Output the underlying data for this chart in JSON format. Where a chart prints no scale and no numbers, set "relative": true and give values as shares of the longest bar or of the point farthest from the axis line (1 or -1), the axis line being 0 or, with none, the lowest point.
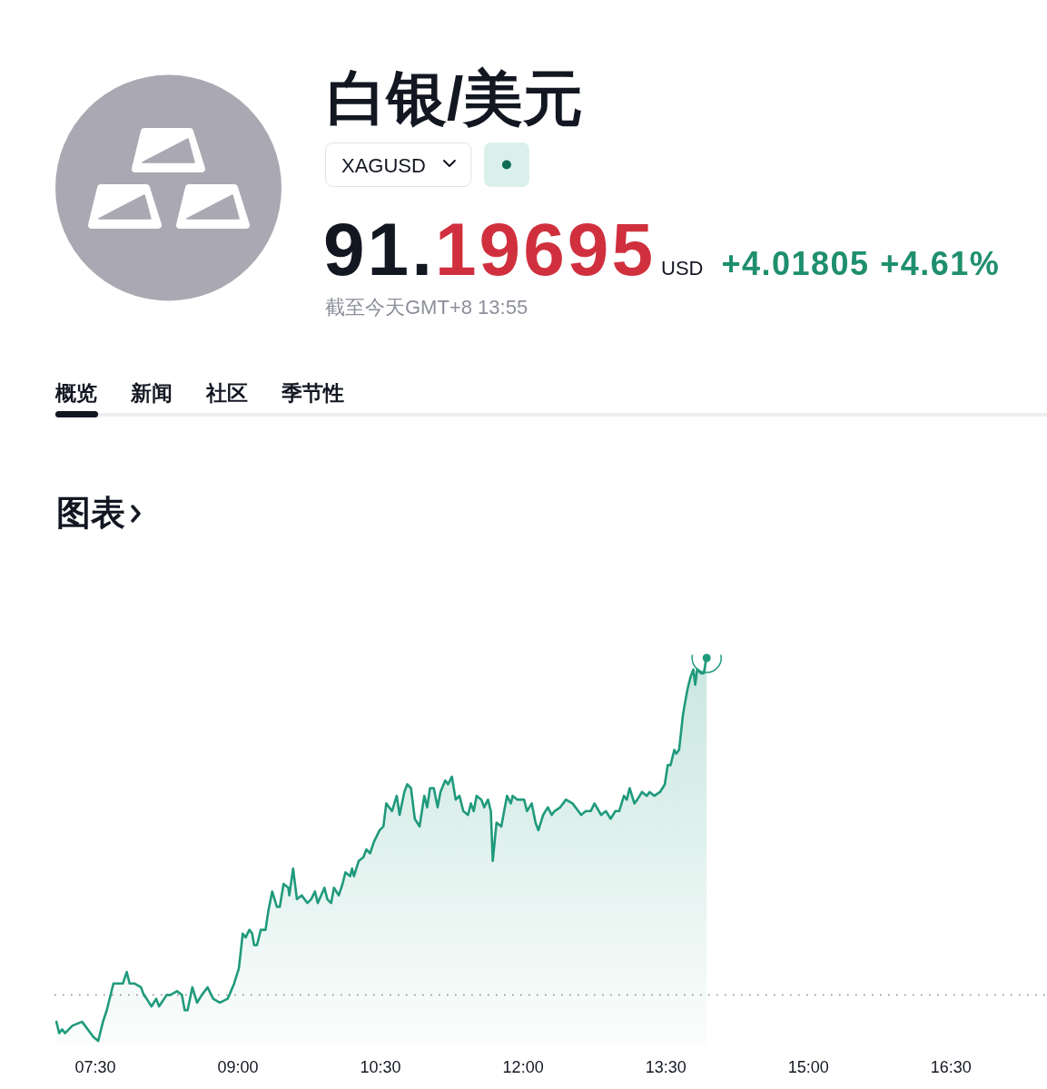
{
  "chart_data": {
    "type": "area",
    "relative": true,
    "title": "白银/美元",
    "annotations": [
      "XAGUSD",
      "91.19695",
      "USD",
      "+4.01805 +4.61%",
      "截至今天GMT+8 13:55",
      "概览",
      "新闻",
      "社区",
      "季节性",
      "图表"
    ],
    "color": "#1f9a7c",
    "xlim": [
      7.07,
      17.51
    ],
    "xticks": [
      {
        "value": 7.5,
        "label": "07:30"
      },
      {
        "value": 9,
        "label": "09:00"
      },
      {
        "value": 10.5,
        "label": "10:30"
      },
      {
        "value": 12,
        "label": "12:00"
      },
      {
        "value": 13.5,
        "label": "13:30"
      },
      {
        "value": 15,
        "label": "15:00"
      },
      {
        "value": 16.5,
        "label": "16:30"
      }
    ],
    "ref_lines": [
      {
        "axis": "y",
        "value": 0.12,
        "color": "#9598a1",
        "line_style": "dotted"
      }
    ],
    "x": [
      7.09,
      7.12,
      7.15,
      7.18,
      7.26,
      7.36,
      7.45,
      7.48,
      7.53,
      7.58,
      7.62,
      7.69,
      7.74,
      7.79,
      7.83,
      7.86,
      7.91,
      7.98,
      8.01,
      8.04,
      8.09,
      8.14,
      8.17,
      8.25,
      8.29,
      8.36,
      8.41,
      8.44,
      8.47,
      8.52,
      8.57,
      8.62,
      8.68,
      8.74,
      8.81,
      8.89,
      8.91,
      8.96,
      9.01,
      9.05,
      9.08,
      9.12,
      9.15,
      9.17,
      9.2,
      9.24,
      9.29,
      9.32,
      9.36,
      9.41,
      9.44,
      9.48,
      9.53,
      9.54,
      9.58,
      9.62,
      9.67,
      9.73,
      9.77,
      9.81,
      9.84,
      9.91,
      9.94,
      9.98,
      10.01,
      10.06,
      10.1,
      10.13,
      10.18,
      10.2,
      10.22,
      10.27,
      10.32,
      10.35,
      10.39,
      10.43,
      10.49,
      10.53,
      10.56,
      10.62,
      10.67,
      10.7,
      10.75,
      10.78,
      10.82,
      10.86,
      10.91,
      10.96,
      10.99,
      11.02,
      11.06,
      11.1,
      11.13,
      11.18,
      11.21,
      11.25,
      11.29,
      11.33,
      11.37,
      11.42,
      11.45,
      11.48,
      11.51,
      11.56,
      11.59,
      11.63,
      11.66,
      11.68,
      11.72,
      11.77,
      11.8,
      11.83,
      11.87,
      11.89,
      11.94,
      12.01,
      12.04,
      12.09,
      12.13,
      12.16,
      12.21,
      12.26,
      12.3,
      12.33,
      12.39,
      12.45,
      12.52,
      12.58,
      12.61,
      12.66,
      12.71,
      12.75,
      12.82,
      12.87,
      12.92,
      12.97,
      13.01,
      13.06,
      13.09,
      13.12,
      13.17,
      13.2,
      13.25,
      13.3,
      13.33,
      13.38,
      13.44,
      13.49,
      13.52,
      13.55,
      13.59,
      13.61,
      13.64,
      13.68,
      13.7,
      13.73,
      13.76,
      13.79,
      13.81,
      13.83,
      13.87,
      13.9,
      13.92,
      13.93
    ],
    "values": [
      0.05,
      0.02,
      0.03,
      0.02,
      0.04,
      0.05,
      0.02,
      0.01,
      0,
      0.05,
      0.08,
      0.15,
      0.15,
      0.15,
      0.18,
      0.15,
      0.15,
      0.14,
      0.12,
      0.11,
      0.09,
      0.11,
      0.09,
      0.12,
      0.12,
      0.13,
      0.12,
      0.08,
      0.08,
      0.14,
      0.1,
      0.12,
      0.14,
      0.11,
      0.1,
      0.11,
      0.12,
      0.15,
      0.19,
      0.28,
      0.27,
      0.29,
      0.28,
      0.25,
      0.25,
      0.29,
      0.29,
      0.34,
      0.39,
      0.35,
      0.35,
      0.41,
      0.4,
      0.38,
      0.45,
      0.37,
      0.38,
      0.36,
      0.37,
      0.39,
      0.36,
      0.4,
      0.37,
      0.36,
      0.4,
      0.38,
      0.41,
      0.44,
      0.43,
      0.45,
      0.43,
      0.47,
      0.48,
      0.5,
      0.49,
      0.52,
      0.55,
      0.56,
      0.62,
      0.6,
      0.64,
      0.59,
      0.65,
      0.67,
      0.66,
      0.58,
      0.56,
      0.64,
      0.61,
      0.66,
      0.66,
      0.61,
      0.65,
      0.68,
      0.67,
      0.69,
      0.63,
      0.64,
      0.6,
      0.59,
      0.62,
      0.6,
      0.64,
      0.63,
      0.61,
      0.63,
      0.6,
      0.47,
      0.57,
      0.56,
      0.6,
      0.64,
      0.62,
      0.64,
      0.63,
      0.63,
      0.6,
      0.62,
      0.57,
      0.55,
      0.59,
      0.61,
      0.59,
      0.6,
      0.61,
      0.63,
      0.62,
      0.6,
      0.59,
      0.6,
      0.6,
      0.62,
      0.59,
      0.6,
      0.58,
      0.6,
      0.6,
      0.64,
      0.63,
      0.66,
      0.62,
      0.63,
      0.65,
      0.64,
      0.65,
      0.64,
      0.65,
      0.67,
      0.72,
      0.72,
      0.76,
      0.75,
      0.76,
      0.85,
      0.88,
      0.92,
      0.95,
      0.97,
      0.93,
      0.97,
      0.96,
      0.96,
      0.99,
      1.0
    ]
  }
}
